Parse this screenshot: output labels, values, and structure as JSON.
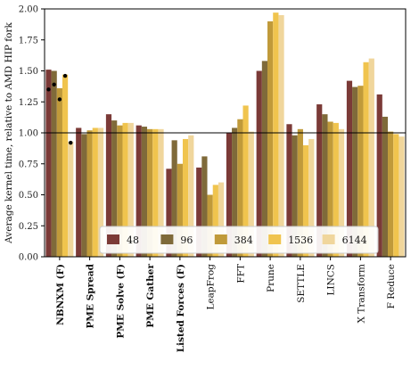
{
  "chart_data": {
    "type": "bar",
    "ylabel": "Average kernel time, relative to AMD HIP fork",
    "ylim": [
      0,
      2.0
    ],
    "yticks": [
      "0.00",
      "0.25",
      "0.50",
      "0.75",
      "1.00",
      "1.25",
      "1.50",
      "1.75",
      "2.00"
    ],
    "reference_line": 1.0,
    "grid": false,
    "legend_position": "lower-center",
    "categories": [
      {
        "label": "NBNXM (F)",
        "bold": true
      },
      {
        "label": "PME Spread",
        "bold": true
      },
      {
        "label": "PME Solve (F)",
        "bold": true
      },
      {
        "label": "PME Gather",
        "bold": true
      },
      {
        "label": "Listed Forces (F)",
        "bold": true
      },
      {
        "label": "LeapFrog",
        "bold": false
      },
      {
        "label": "FFT",
        "bold": false
      },
      {
        "label": "Prune",
        "bold": false
      },
      {
        "label": "SETTLE",
        "bold": false
      },
      {
        "label": "LINCS",
        "bold": false
      },
      {
        "label": "X Transform",
        "bold": false
      },
      {
        "label": "F Reduce",
        "bold": false
      }
    ],
    "series": [
      {
        "name": "48",
        "color": "#7b3a37",
        "values": [
          1.51,
          1.04,
          1.15,
          1.06,
          0.71,
          0.72,
          1.0,
          1.5,
          1.07,
          1.23,
          1.42,
          1.31
        ]
      },
      {
        "name": "96",
        "color": "#7f6a3a",
        "values": [
          1.5,
          0.99,
          1.1,
          1.05,
          0.94,
          0.81,
          1.04,
          1.58,
          0.98,
          1.15,
          1.37,
          1.13
        ]
      },
      {
        "name": "384",
        "color": "#c09a3a",
        "values": [
          1.36,
          1.02,
          1.06,
          1.03,
          0.75,
          0.5,
          1.11,
          1.9,
          1.03,
          1.09,
          1.38,
          1.01
        ]
      },
      {
        "name": "1536",
        "color": "#f0c44e",
        "values": [
          1.47,
          1.04,
          1.08,
          1.03,
          0.95,
          0.58,
          1.22,
          1.97,
          0.9,
          1.08,
          1.57,
          0.99
        ]
      },
      {
        "name": "6144",
        "color": "#f0d69c",
        "values": [
          0.93,
          1.04,
          1.08,
          1.03,
          0.98,
          0.6,
          1.01,
          1.95,
          0.95,
          1.03,
          1.6,
          0.97
        ]
      }
    ],
    "markers": [
      {
        "category": "NBNXM (F)",
        "series": "48",
        "value": 1.35
      },
      {
        "category": "NBNXM (F)",
        "series": "96",
        "value": 1.39
      },
      {
        "category": "NBNXM (F)",
        "series": "384",
        "value": 1.27
      },
      {
        "category": "NBNXM (F)",
        "series": "1536",
        "value": 1.46
      },
      {
        "category": "NBNXM (F)",
        "series": "6144",
        "value": 0.92
      }
    ]
  }
}
